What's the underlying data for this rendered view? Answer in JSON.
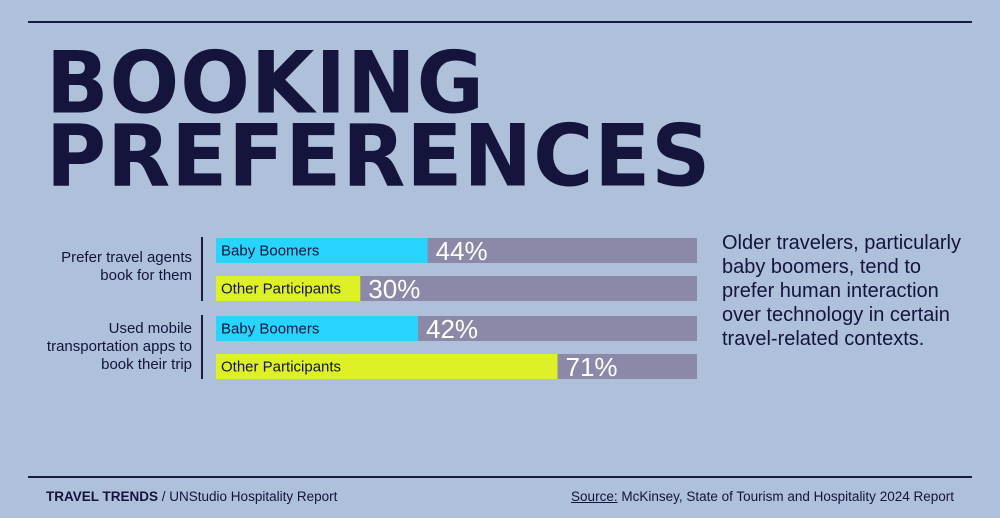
{
  "title_lines": [
    "BOOKING",
    "PREFERENCES"
  ],
  "colors": {
    "background": "#aec0da",
    "track": "#8b89a7",
    "baby_boomers": "#27d4fb",
    "other_participants": "#def127",
    "text": "#14143c"
  },
  "chart_data": {
    "type": "bar",
    "orientation": "horizontal",
    "unit": "%",
    "xlim": [
      0,
      100
    ],
    "groups": [
      {
        "label": "Prefer travel agents book for them",
        "bars": [
          {
            "series": "Baby Boomers",
            "value": 44,
            "label": "44%"
          },
          {
            "series": "Other Participants",
            "value": 30,
            "label": "30%"
          }
        ]
      },
      {
        "label": "Used mobile transportation apps to book their trip",
        "bars": [
          {
            "series": "Baby Boomers",
            "value": 42,
            "label": "42%"
          },
          {
            "series": "Other Participants",
            "value": 71,
            "label": "71%"
          }
        ]
      }
    ]
  },
  "side_text": "Older travelers, particularly baby boomers, tend to prefer human interaction over technology in certain travel-related contexts.",
  "footer": {
    "brand": "TRAVEL TRENDS",
    "separator": " / ",
    "report": "UNStudio Hospitality Report",
    "source_label": "Source:",
    "source_text": " McKinsey, State of Tourism and Hospitality 2024 Report"
  }
}
